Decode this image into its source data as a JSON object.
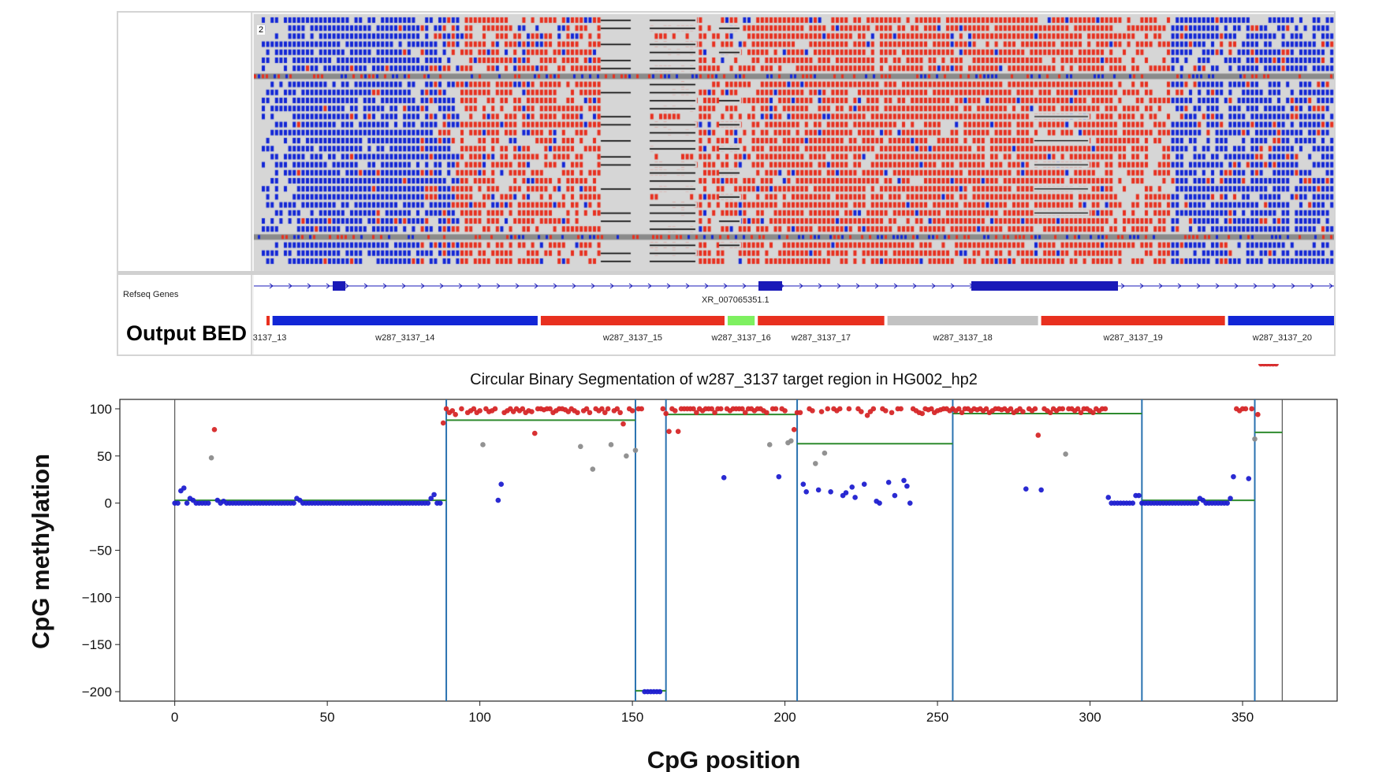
{
  "igv": {
    "read_count": "2",
    "track_label_refseq": "Refseq Genes",
    "track_label_bed": "Output BED",
    "gene_name": "XR_007065351.1",
    "bed_segments": [
      {
        "label": "3137_13",
        "color": "#e8301f",
        "start": -2,
        "end": 0
      },
      {
        "label": "w287_3137_14",
        "color": "#1226d6",
        "start": 0,
        "end": 89
      },
      {
        "label": "w287_3137_15",
        "color": "#e8301f",
        "start": 89,
        "end": 151
      },
      {
        "label": "w287_3137_16",
        "color": "#7ef060",
        "start": 151,
        "end": 161
      },
      {
        "label": "w287_3137_17",
        "color": "#e8301f",
        "start": 161,
        "end": 204
      },
      {
        "label": "w287_3137_18",
        "color": "#c2c2c2",
        "start": 204,
        "end": 255
      },
      {
        "label": "w287_3137_19",
        "color": "#e8301f",
        "start": 255,
        "end": 317
      },
      {
        "label": "w287_3137_20",
        "color": "#1226d6",
        "start": 317,
        "end": 354
      }
    ],
    "colors": {
      "methylated": "#e8301f",
      "unmethylated": "#1226d6",
      "background": "#d6d6d6",
      "gene": "#1a1ab8"
    }
  },
  "chart_data": {
    "type": "scatter",
    "title": "Circular Binary Segmentation of w287_3137 target region in HG002_hp2",
    "xlabel": "CpG position",
    "ylabel": "CpG methylation",
    "xlim": [
      -18,
      381
    ],
    "ylim": [
      -210,
      110
    ],
    "xticks": [
      0,
      50,
      100,
      150,
      200,
      250,
      300,
      350
    ],
    "yticks": [
      100,
      50,
      0,
      -50,
      -100,
      -150,
      -200
    ],
    "boundaries": [
      0,
      89,
      151,
      161,
      204,
      255,
      317,
      354,
      363
    ],
    "segment_means": [
      {
        "start": 0,
        "end": 89,
        "mean": 3
      },
      {
        "start": 89,
        "end": 151,
        "mean": 88
      },
      {
        "start": 151,
        "end": 161,
        "mean": -199
      },
      {
        "start": 161,
        "end": 204,
        "mean": 94
      },
      {
        "start": 204,
        "end": 255,
        "mean": 63
      },
      {
        "start": 255,
        "end": 317,
        "mean": 95
      },
      {
        "start": 317,
        "end": 354,
        "mean": 3
      },
      {
        "start": 354,
        "end": 363,
        "mean": 75
      }
    ],
    "point_colors": {
      "high": "#d62728",
      "mid": "#8c8c8c",
      "low": "#1f1fd0"
    },
    "points_x": [
      0,
      1,
      2,
      3,
      4,
      5,
      6,
      7,
      8,
      9,
      10,
      11,
      12,
      13,
      14,
      15,
      16,
      17,
      18,
      19,
      20,
      21,
      22,
      23,
      24,
      25,
      26,
      27,
      28,
      29,
      30,
      31,
      32,
      33,
      34,
      35,
      36,
      37,
      38,
      39,
      40,
      41,
      42,
      43,
      44,
      45,
      46,
      47,
      48,
      49,
      50,
      51,
      52,
      53,
      54,
      55,
      56,
      57,
      58,
      59,
      60,
      61,
      62,
      63,
      64,
      65,
      66,
      67,
      68,
      69,
      70,
      71,
      72,
      73,
      74,
      75,
      76,
      77,
      78,
      79,
      80,
      81,
      82,
      83,
      84,
      85,
      86,
      87,
      88,
      89,
      90,
      91,
      92,
      94,
      96,
      97,
      98,
      99,
      100,
      101,
      102,
      103,
      104,
      105,
      106,
      107,
      108,
      109,
      110,
      111,
      112,
      113,
      114,
      115,
      116,
      117,
      118,
      119,
      120,
      121,
      122,
      123,
      124,
      125,
      126,
      127,
      128,
      129,
      130,
      131,
      132,
      133,
      134,
      135,
      136,
      137,
      138,
      139,
      140,
      141,
      142,
      143,
      144,
      145,
      146,
      147,
      148,
      149,
      150,
      151,
      152,
      153,
      154,
      155,
      156,
      157,
      158,
      159,
      160,
      161,
      162,
      163,
      164,
      165,
      166,
      167,
      168,
      169,
      170,
      171,
      172,
      173,
      174,
      175,
      176,
      177,
      178,
      179,
      180,
      181,
      182,
      183,
      184,
      185,
      186,
      187,
      188,
      189,
      190,
      191,
      192,
      193,
      194,
      195,
      196,
      197,
      198,
      199,
      200,
      201,
      202,
      203,
      204,
      205,
      206,
      207,
      208,
      209,
      210,
      211,
      212,
      213,
      214,
      215,
      216,
      217,
      218,
      219,
      220,
      221,
      222,
      223,
      224,
      225,
      226,
      227,
      228,
      229,
      230,
      231,
      232,
      233,
      234,
      235,
      236,
      237,
      238,
      239,
      240,
      241,
      242,
      243,
      244,
      245,
      246,
      247,
      248,
      249,
      250,
      251,
      252,
      253,
      254,
      255,
      256,
      257,
      258,
      259,
      260,
      261,
      262,
      263,
      264,
      265,
      266,
      267,
      268,
      269,
      270,
      271,
      272,
      273,
      274,
      275,
      276,
      277,
      278,
      279,
      280,
      281,
      282,
      283,
      284,
      285,
      286,
      287,
      288,
      289,
      290,
      291,
      292,
      293,
      294,
      295,
      296,
      297,
      298,
      299,
      300,
      301,
      302,
      303,
      304,
      305,
      306,
      307,
      308,
      309,
      310,
      311,
      312,
      313,
      314,
      315,
      316,
      317,
      318,
      319,
      320,
      321,
      322,
      323,
      324,
      325,
      326,
      327,
      328,
      329,
      330,
      331,
      332,
      333,
      334,
      335,
      336,
      337,
      338,
      339,
      340,
      341,
      342,
      343,
      344,
      345,
      346,
      347,
      348,
      349,
      350,
      351,
      352,
      353,
      354,
      355,
      356,
      357,
      358,
      359,
      360,
      361
    ],
    "points_y": [
      0,
      0,
      13,
      16,
      0,
      5,
      3,
      0,
      0,
      0,
      0,
      0,
      48,
      78,
      3,
      0,
      2,
      0,
      0,
      0,
      0,
      0,
      0,
      0,
      0,
      0,
      0,
      0,
      0,
      0,
      0,
      0,
      0,
      0,
      0,
      0,
      0,
      0,
      0,
      0,
      5,
      3,
      0,
      0,
      0,
      0,
      0,
      0,
      0,
      0,
      0,
      0,
      0,
      0,
      0,
      0,
      0,
      0,
      0,
      0,
      0,
      0,
      0,
      0,
      0,
      0,
      0,
      0,
      0,
      0,
      0,
      0,
      0,
      0,
      0,
      0,
      0,
      0,
      0,
      0,
      0,
      0,
      0,
      0,
      5,
      9,
      0,
      0,
      85,
      100,
      96,
      98,
      94,
      100,
      96,
      98,
      100,
      96,
      98,
      62,
      100,
      97,
      98,
      100,
      3,
      20,
      96,
      98,
      100,
      97,
      100,
      98,
      100,
      96,
      98,
      97,
      74,
      100,
      100,
      99,
      100,
      100,
      96,
      98,
      100,
      100,
      99,
      97,
      100,
      98,
      96,
      60,
      98,
      100,
      96,
      36,
      100,
      98,
      100,
      96,
      100,
      62,
      98,
      100,
      96,
      84,
      50,
      100,
      98,
      56,
      100,
      100,
      -200,
      -200,
      -200,
      -200,
      -200,
      -200,
      100,
      95,
      76,
      100,
      98,
      76,
      100,
      100,
      100,
      100,
      100,
      96,
      100,
      98,
      100,
      100,
      100,
      96,
      100,
      100,
      27,
      100,
      98,
      100,
      100,
      100,
      100,
      96,
      100,
      100,
      98,
      100,
      100,
      98,
      96,
      62,
      100,
      100,
      28,
      100,
      98,
      64,
      66,
      78,
      96,
      96,
      20,
      12,
      100,
      98,
      42,
      14,
      97,
      53,
      100,
      12,
      100,
      98,
      100,
      8,
      11,
      100,
      17,
      6,
      100,
      97,
      20,
      93,
      97,
      100,
      2,
      0,
      100,
      98,
      22,
      96,
      8,
      100,
      100,
      24,
      18,
      0,
      100,
      98,
      96,
      95,
      100,
      99,
      100,
      96,
      98,
      99,
      100,
      100,
      98,
      100,
      98,
      100,
      96,
      100,
      100,
      98,
      100,
      99,
      100,
      98,
      100,
      96,
      98,
      100,
      100,
      99,
      100,
      98,
      100,
      96,
      98,
      100,
      97,
      15,
      100,
      98,
      100,
      72,
      14,
      100,
      98,
      96,
      100,
      98,
      100,
      100,
      52,
      100,
      100,
      98,
      100,
      96,
      100,
      100,
      98,
      96,
      100,
      98,
      100,
      100,
      6,
      0,
      0,
      0,
      0,
      0,
      0,
      0,
      0,
      8,
      8,
      0,
      0,
      0,
      0,
      0,
      0,
      0,
      0,
      0,
      0,
      0,
      0,
      0,
      0,
      0,
      0,
      0,
      0,
      0,
      5,
      3,
      0,
      0,
      0,
      0,
      0,
      0,
      0,
      0,
      5,
      28,
      100,
      98,
      100,
      100,
      26,
      100,
      68,
      94
    ]
  }
}
